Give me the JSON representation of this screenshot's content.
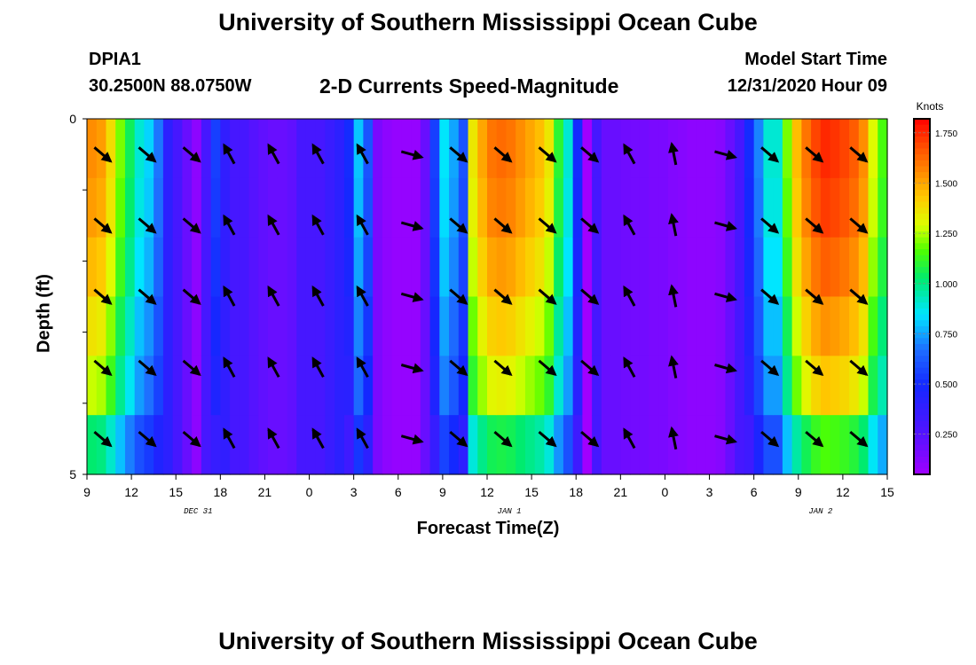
{
  "header": {
    "title": "University of Southern Mississippi Ocean Cube",
    "station_id": "DPIA1",
    "coords": "30.2500N 88.0750W",
    "plot_title": "2-D Currents Speed-Magnitude",
    "start_label": "Model Start Time",
    "start_value": "12/31/2020 Hour 09"
  },
  "footer": {
    "title": "University of Southern Mississippi Ocean Cube"
  },
  "chart_data": {
    "type": "heatmap",
    "xlabel": "Forecast Time(Z)",
    "ylabel": "Depth (ft)",
    "x_ticks": [
      "9",
      "12",
      "15",
      "18",
      "21",
      "0",
      "3",
      "6",
      "9",
      "12",
      "15",
      "18",
      "21",
      "0",
      "3",
      "6",
      "9",
      "12",
      "15"
    ],
    "date_labels": [
      {
        "text": "DEC 31",
        "tick_index": 2.5
      },
      {
        "text": "JAN 1",
        "tick_index": 9.5
      },
      {
        "text": "JAN 2",
        "tick_index": 16.5
      }
    ],
    "y_ticks": [
      "0",
      "5"
    ],
    "ylim": [
      0,
      5
    ],
    "colorbar": {
      "title": "Knots",
      "ticks": [
        "0.250",
        "0.500",
        "0.750",
        "1.000",
        "1.250",
        "1.500",
        "1.750"
      ],
      "tick_values": [
        0.25,
        0.5,
        0.75,
        1.0,
        1.25,
        1.5,
        1.75
      ],
      "range": [
        0.05,
        1.82
      ]
    },
    "depth_rows": 5,
    "speed_columns": [
      1.55,
      1.52,
      1.38,
      1.2,
      1.05,
      0.9,
      0.82,
      0.68,
      0.4,
      0.3,
      0.2,
      0.1,
      0.3,
      0.55,
      0.38,
      0.3,
      0.3,
      0.25,
      0.22,
      0.2,
      0.2,
      0.22,
      0.3,
      0.3,
      0.3,
      0.35,
      0.4,
      0.5,
      0.8,
      0.6,
      0.15,
      0.1,
      0.08,
      0.08,
      0.08,
      0.2,
      0.55,
      0.85,
      0.75,
      0.6,
      1.35,
      1.5,
      1.6,
      1.62,
      1.6,
      1.55,
      1.5,
      1.45,
      1.35,
      1.1,
      0.9,
      0.5,
      0.05,
      0.3,
      0.2,
      0.2,
      0.18,
      0.17,
      0.17,
      0.15,
      0.15,
      0.13,
      0.12,
      0.1,
      0.1,
      0.1,
      0.12,
      0.2,
      0.3,
      0.5,
      0.7,
      0.9,
      0.9,
      1.2,
      1.45,
      1.6,
      1.7,
      1.75,
      1.73,
      1.7,
      1.65,
      1.55,
      1.3,
      1.15
    ],
    "depth_factors": [
      1.0,
      0.98,
      0.94,
      0.88,
      0.82,
      0.66
    ],
    "arrow_columns": [
      {
        "tick": 0.35,
        "dir": "se"
      },
      {
        "tick": 1.35,
        "dir": "se"
      },
      {
        "tick": 2.35,
        "dir": "se"
      },
      {
        "tick": 3.2,
        "dir": "nw"
      },
      {
        "tick": 4.2,
        "dir": "nw"
      },
      {
        "tick": 5.2,
        "dir": "nw"
      },
      {
        "tick": 6.2,
        "dir": "nw"
      },
      {
        "tick": 7.3,
        "dir": "ese"
      },
      {
        "tick": 8.35,
        "dir": "se"
      },
      {
        "tick": 9.35,
        "dir": "se"
      },
      {
        "tick": 10.35,
        "dir": "se"
      },
      {
        "tick": 11.3,
        "dir": "se"
      },
      {
        "tick": 12.2,
        "dir": "nw"
      },
      {
        "tick": 13.2,
        "dir": "nnw"
      },
      {
        "tick": 14.35,
        "dir": "ese"
      },
      {
        "tick": 15.35,
        "dir": "se"
      },
      {
        "tick": 16.35,
        "dir": "se"
      },
      {
        "tick": 17.35,
        "dir": "se"
      }
    ],
    "arrow_rows": [
      0.5,
      1.5,
      2.5,
      3.5,
      4.5
    ]
  }
}
